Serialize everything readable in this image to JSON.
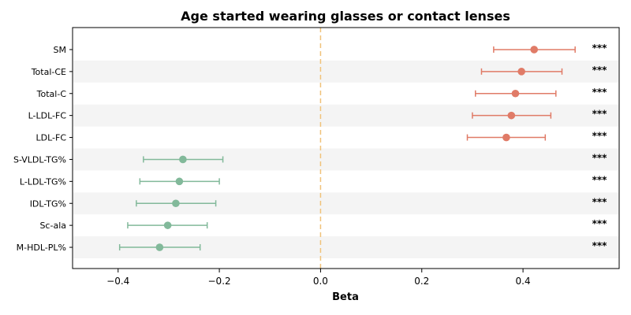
{
  "chart_data": {
    "type": "forest",
    "title": "Age started wearing glasses or contact lenses",
    "xlabel": "Beta",
    "ylabel": "",
    "xlim": [
      -0.49,
      0.59
    ],
    "xticks": [
      -0.4,
      -0.2,
      0.0,
      0.2,
      0.4
    ],
    "xtick_labels": [
      "−0.4",
      "−0.2",
      "0.0",
      "0.2",
      "0.4"
    ],
    "reference_line": 0.0,
    "colors": {
      "positive": "#e07b67",
      "negative": "#82b99a",
      "reference": "#f0c27a",
      "band": "#f4f4f4"
    },
    "rows": [
      {
        "label": "SM",
        "beta": 0.422,
        "lower": 0.342,
        "upper": 0.503,
        "sig": "***"
      },
      {
        "label": "Total-CE",
        "beta": 0.397,
        "lower": 0.318,
        "upper": 0.477,
        "sig": "***"
      },
      {
        "label": "Total-C",
        "beta": 0.385,
        "lower": 0.306,
        "upper": 0.465,
        "sig": "***"
      },
      {
        "label": "L-LDL-FC",
        "beta": 0.377,
        "lower": 0.3,
        "upper": 0.455,
        "sig": "***"
      },
      {
        "label": "LDL-FC",
        "beta": 0.367,
        "lower": 0.29,
        "upper": 0.444,
        "sig": "***"
      },
      {
        "label": "S-VLDL-TG%",
        "beta": -0.272,
        "lower": -0.35,
        "upper": -0.193,
        "sig": "***"
      },
      {
        "label": "L-LDL-TG%",
        "beta": -0.279,
        "lower": -0.357,
        "upper": -0.2,
        "sig": "***"
      },
      {
        "label": "IDL-TG%",
        "beta": -0.286,
        "lower": -0.364,
        "upper": -0.207,
        "sig": "***"
      },
      {
        "label": "Sc-ala",
        "beta": -0.302,
        "lower": -0.381,
        "upper": -0.224,
        "sig": "***"
      },
      {
        "label": "M-HDL-PL%",
        "beta": -0.318,
        "lower": -0.397,
        "upper": -0.238,
        "sig": "***"
      }
    ]
  }
}
